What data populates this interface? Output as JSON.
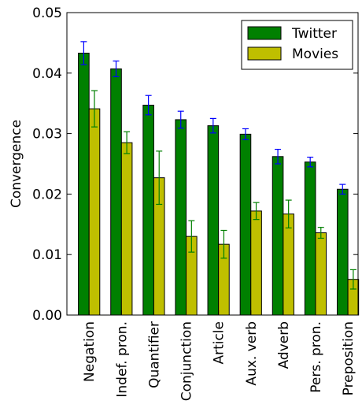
{
  "chart_data": {
    "type": "bar",
    "title": "",
    "xlabel": "",
    "ylabel": "Convergence",
    "ylim": [
      0,
      0.05
    ],
    "yticks": [
      "0.00",
      "0.01",
      "0.02",
      "0.03",
      "0.04",
      "0.05"
    ],
    "grid": false,
    "legend_position": "top-right",
    "categories": [
      "Negation",
      "Indef. pron.",
      "Quantifier",
      "Conjunction",
      "Article",
      "Aux. verb",
      "Adverb",
      "Pers. pron.",
      "Preposition"
    ],
    "series": [
      {
        "name": "Twitter",
        "color": "#008000",
        "error_color": "#0000ff",
        "values": [
          0.0433,
          0.0407,
          0.0347,
          0.0323,
          0.0313,
          0.0299,
          0.0262,
          0.0253,
          0.0208
        ],
        "errors": [
          0.0019,
          0.0013,
          0.0016,
          0.0014,
          0.0012,
          0.0009,
          0.0012,
          0.0008,
          0.0008
        ]
      },
      {
        "name": "Movies",
        "color": "#bfbf00",
        "error_color": "#008000",
        "values": [
          0.0341,
          0.0285,
          0.0227,
          0.013,
          0.0117,
          0.0172,
          0.0167,
          0.0136,
          0.0059
        ],
        "errors": [
          0.003,
          0.0018,
          0.0044,
          0.0026,
          0.0023,
          0.0014,
          0.0023,
          0.0009,
          0.0016
        ]
      }
    ]
  }
}
